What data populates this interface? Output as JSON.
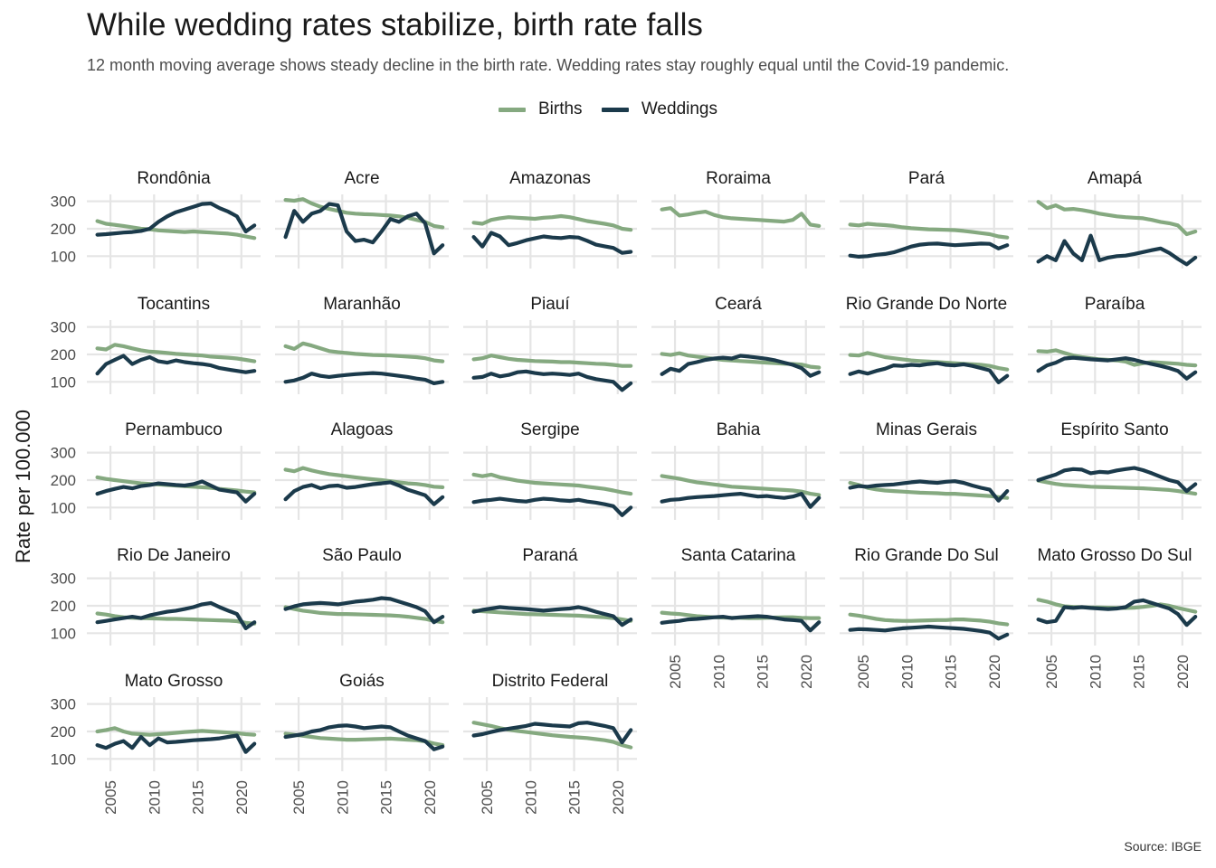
{
  "chart_data": {
    "type": "line",
    "title": "While wedding rates stabilize, birth rate falls",
    "subtitle": "12 month moving average shows steady decline in the birth rate. Wedding rates stay roughly equal until the Covid-19 pandemic.",
    "caption": "Source: IBGE",
    "ylabel": "Rate per 100.000",
    "xlabel": "",
    "x_ticks": [
      2005,
      2010,
      2015,
      2020
    ],
    "y_ticks": [
      100,
      200,
      300
    ],
    "xlim": [
      2002.3,
      2022.2
    ],
    "ylim": [
      55,
      325
    ],
    "grid": true,
    "legend_position": "top",
    "x": [
      2003.5,
      2004.5,
      2005.5,
      2006.5,
      2007.5,
      2008.5,
      2009.5,
      2010.5,
      2011.5,
      2012.5,
      2013.5,
      2014.5,
      2015.5,
      2016.5,
      2017.5,
      2018.5,
      2019.5,
      2020.5,
      2021.5
    ],
    "series_names": [
      "Births",
      "Weddings"
    ],
    "series_colors": [
      "#85a980",
      "#1b3a4b"
    ],
    "panels": [
      {
        "name": "Rondônia",
        "births": [
          228,
          218,
          214,
          210,
          205,
          200,
          198,
          194,
          192,
          190,
          188,
          190,
          188,
          186,
          184,
          182,
          178,
          172,
          166
        ],
        "weddings": [
          178,
          180,
          183,
          186,
          188,
          192,
          200,
          225,
          245,
          260,
          270,
          280,
          290,
          292,
          275,
          262,
          245,
          190,
          212
        ]
      },
      {
        "name": "Acre",
        "births": [
          305,
          302,
          308,
          292,
          280,
          272,
          265,
          258,
          255,
          253,
          252,
          250,
          248,
          245,
          240,
          232,
          225,
          210,
          205
        ],
        "weddings": [
          170,
          265,
          225,
          255,
          265,
          290,
          285,
          190,
          155,
          160,
          150,
          190,
          235,
          225,
          245,
          255,
          220,
          110,
          140
        ]
      },
      {
        "name": "Amazonas",
        "births": [
          222,
          218,
          232,
          238,
          242,
          240,
          238,
          236,
          240,
          242,
          246,
          242,
          235,
          228,
          223,
          218,
          212,
          200,
          196
        ],
        "weddings": [
          170,
          135,
          185,
          172,
          140,
          148,
          158,
          165,
          172,
          168,
          166,
          170,
          168,
          156,
          142,
          136,
          130,
          112,
          116
        ]
      },
      {
        "name": "Roraima",
        "births": [
          270,
          275,
          248,
          252,
          258,
          262,
          250,
          242,
          238,
          236,
          234,
          232,
          230,
          228,
          226,
          232,
          255,
          215,
          210
        ]
      },
      {
        "name": "Pará",
        "births": [
          215,
          212,
          218,
          215,
          213,
          210,
          205,
          202,
          200,
          198,
          197,
          196,
          195,
          192,
          188,
          184,
          180,
          172,
          168
        ],
        "weddings": [
          102,
          98,
          100,
          105,
          108,
          114,
          124,
          135,
          142,
          145,
          146,
          143,
          140,
          142,
          144,
          146,
          145,
          128,
          140
        ]
      },
      {
        "name": "Amapá",
        "births": [
          298,
          275,
          285,
          270,
          272,
          268,
          262,
          255,
          250,
          245,
          242,
          240,
          238,
          232,
          225,
          220,
          212,
          180,
          190
        ],
        "weddings": [
          80,
          100,
          85,
          155,
          110,
          85,
          175,
          85,
          95,
          100,
          102,
          108,
          115,
          122,
          128,
          112,
          90,
          70,
          95
        ]
      },
      {
        "name": "Tocantins",
        "births": [
          222,
          218,
          235,
          230,
          222,
          215,
          210,
          208,
          205,
          202,
          200,
          198,
          196,
          192,
          190,
          188,
          185,
          180,
          175
        ],
        "weddings": [
          130,
          165,
          180,
          195,
          165,
          180,
          190,
          175,
          170,
          178,
          172,
          168,
          165,
          160,
          150,
          145,
          140,
          135,
          140
        ]
      },
      {
        "name": "Maranhão",
        "births": [
          230,
          220,
          240,
          232,
          222,
          212,
          208,
          205,
          202,
          200,
          198,
          197,
          196,
          194,
          192,
          190,
          186,
          178,
          175
        ],
        "weddings": [
          100,
          105,
          115,
          130,
          122,
          118,
          122,
          125,
          128,
          130,
          132,
          130,
          126,
          122,
          118,
          112,
          108,
          95,
          100
        ]
      },
      {
        "name": "Piauí",
        "births": [
          182,
          186,
          196,
          190,
          184,
          180,
          178,
          176,
          175,
          174,
          172,
          172,
          170,
          168,
          166,
          165,
          162,
          158,
          158
        ],
        "weddings": [
          115,
          118,
          130,
          120,
          125,
          135,
          138,
          132,
          128,
          130,
          128,
          125,
          130,
          118,
          110,
          105,
          100,
          70,
          95
        ]
      },
      {
        "name": "Ceará",
        "births": [
          202,
          198,
          204,
          196,
          192,
          188,
          184,
          180,
          178,
          176,
          174,
          172,
          170,
          168,
          166,
          165,
          163,
          155,
          152
        ],
        "weddings": [
          128,
          148,
          140,
          165,
          172,
          180,
          185,
          188,
          185,
          195,
          192,
          188,
          184,
          178,
          170,
          162,
          150,
          122,
          135
        ]
      },
      {
        "name": "Rio Grande Do Norte",
        "births": [
          198,
          196,
          205,
          198,
          190,
          186,
          182,
          178,
          176,
          174,
          172,
          170,
          168,
          166,
          164,
          162,
          158,
          150,
          145
        ],
        "weddings": [
          128,
          138,
          130,
          140,
          148,
          160,
          158,
          162,
          160,
          165,
          168,
          162,
          160,
          164,
          158,
          150,
          142,
          98,
          122
        ]
      },
      {
        "name": "Paraíba",
        "births": [
          212,
          210,
          215,
          205,
          196,
          190,
          186,
          182,
          180,
          178,
          174,
          162,
          168,
          172,
          170,
          168,
          166,
          162,
          160
        ],
        "weddings": [
          140,
          160,
          170,
          185,
          188,
          185,
          182,
          180,
          178,
          182,
          186,
          180,
          172,
          165,
          158,
          150,
          140,
          112,
          135
        ]
      },
      {
        "name": "Pernambuco",
        "births": [
          210,
          204,
          200,
          196,
          192,
          188,
          186,
          184,
          182,
          180,
          178,
          176,
          174,
          172,
          168,
          165,
          162,
          158,
          155
        ],
        "weddings": [
          150,
          160,
          168,
          175,
          170,
          178,
          182,
          188,
          185,
          182,
          180,
          185,
          195,
          180,
          165,
          160,
          155,
          122,
          150
        ]
      },
      {
        "name": "Alagoas",
        "births": [
          238,
          232,
          244,
          235,
          228,
          222,
          218,
          214,
          210,
          206,
          203,
          200,
          196,
          192,
          188,
          186,
          182,
          176,
          174
        ],
        "weddings": [
          130,
          160,
          175,
          182,
          170,
          178,
          180,
          172,
          175,
          180,
          185,
          188,
          192,
          180,
          165,
          155,
          145,
          112,
          138
        ]
      },
      {
        "name": "Sergipe",
        "births": [
          220,
          214,
          220,
          210,
          204,
          198,
          194,
          190,
          188,
          186,
          184,
          182,
          180,
          176,
          172,
          168,
          162,
          155,
          150
        ],
        "weddings": [
          120,
          125,
          128,
          132,
          128,
          124,
          122,
          128,
          132,
          130,
          126,
          124,
          128,
          122,
          118,
          112,
          105,
          72,
          100
        ]
      },
      {
        "name": "Bahia",
        "births": [
          215,
          210,
          205,
          198,
          192,
          188,
          184,
          180,
          176,
          174,
          172,
          170,
          168,
          166,
          164,
          162,
          158,
          150,
          146
        ],
        "weddings": [
          122,
          128,
          130,
          135,
          138,
          140,
          142,
          145,
          148,
          150,
          145,
          140,
          142,
          138,
          135,
          140,
          150,
          102,
          135
        ]
      },
      {
        "name": "Minas Gerais",
        "births": [
          190,
          182,
          172,
          166,
          162,
          160,
          158,
          156,
          154,
          153,
          152,
          150,
          150,
          148,
          146,
          144,
          142,
          138,
          135
        ],
        "weddings": [
          172,
          178,
          176,
          180,
          182,
          184,
          188,
          192,
          195,
          192,
          190,
          194,
          196,
          190,
          180,
          172,
          165,
          125,
          160
        ]
      },
      {
        "name": "Espírito Santo",
        "births": [
          198,
          192,
          186,
          182,
          180,
          178,
          176,
          175,
          174,
          173,
          172,
          171,
          170,
          168,
          166,
          164,
          160,
          155,
          150
        ],
        "weddings": [
          200,
          210,
          220,
          235,
          240,
          238,
          225,
          230,
          228,
          235,
          240,
          244,
          236,
          225,
          212,
          200,
          192,
          160,
          185
        ]
      },
      {
        "name": "Rio De Janeiro",
        "births": [
          172,
          168,
          162,
          158,
          156,
          155,
          154,
          153,
          152,
          152,
          151,
          150,
          149,
          148,
          147,
          146,
          144,
          138,
          135
        ],
        "weddings": [
          140,
          145,
          150,
          155,
          160,
          155,
          165,
          172,
          178,
          182,
          188,
          195,
          205,
          210,
          195,
          182,
          170,
          118,
          140
        ]
      },
      {
        "name": "São Paulo",
        "births": [
          195,
          188,
          182,
          178,
          174,
          172,
          170,
          170,
          169,
          168,
          167,
          166,
          165,
          163,
          160,
          156,
          152,
          145,
          140
        ],
        "weddings": [
          188,
          198,
          205,
          208,
          210,
          208,
          205,
          210,
          215,
          218,
          222,
          228,
          225,
          215,
          205,
          195,
          180,
          140,
          160
        ]
      },
      {
        "name": "Paraná",
        "births": [
          182,
          180,
          178,
          176,
          174,
          172,
          170,
          169,
          168,
          167,
          166,
          165,
          164,
          162,
          160,
          158,
          155,
          150,
          145
        ],
        "weddings": [
          178,
          185,
          190,
          195,
          192,
          190,
          188,
          185,
          182,
          185,
          188,
          190,
          195,
          188,
          178,
          170,
          162,
          130,
          150
        ]
      },
      {
        "name": "Santa Catarina",
        "births": [
          175,
          172,
          170,
          166,
          162,
          160,
          158,
          157,
          156,
          156,
          155,
          155,
          156,
          157,
          158,
          158,
          156,
          155,
          155
        ],
        "weddings": [
          138,
          142,
          145,
          150,
          152,
          155,
          158,
          160,
          155,
          158,
          160,
          162,
          160,
          155,
          150,
          148,
          145,
          110,
          140
        ]
      },
      {
        "name": "Rio Grande Do Sul",
        "births": [
          168,
          164,
          158,
          152,
          148,
          146,
          145,
          145,
          146,
          147,
          148,
          148,
          150,
          150,
          148,
          146,
          142,
          136,
          132
        ],
        "weddings": [
          112,
          115,
          114,
          112,
          110,
          114,
          118,
          120,
          122,
          124,
          122,
          120,
          118,
          116,
          112,
          108,
          102,
          80,
          95
        ]
      },
      {
        "name": "Mato Grosso Do Sul",
        "births": [
          222,
          215,
          205,
          198,
          196,
          195,
          194,
          194,
          193,
          192,
          192,
          193,
          196,
          200,
          205,
          200,
          192,
          185,
          178
        ],
        "weddings": [
          150,
          140,
          145,
          195,
          192,
          195,
          192,
          190,
          188,
          190,
          195,
          215,
          220,
          210,
          200,
          190,
          170,
          130,
          160
        ]
      },
      {
        "name": "Mato Grosso",
        "births": [
          200,
          205,
          212,
          200,
          192,
          190,
          188,
          190,
          192,
          195,
          198,
          200,
          202,
          200,
          198,
          196,
          194,
          190,
          188
        ],
        "weddings": [
          150,
          140,
          155,
          165,
          140,
          180,
          150,
          175,
          160,
          162,
          165,
          168,
          170,
          172,
          175,
          180,
          185,
          125,
          155
        ]
      },
      {
        "name": "Goiás",
        "births": [
          192,
          188,
          184,
          180,
          176,
          174,
          172,
          170,
          170,
          171,
          172,
          173,
          174,
          172,
          170,
          168,
          164,
          156,
          150
        ],
        "weddings": [
          180,
          185,
          190,
          200,
          205,
          215,
          220,
          222,
          218,
          212,
          215,
          218,
          215,
          200,
          185,
          175,
          165,
          135,
          145
        ]
      },
      {
        "name": "Distrito Federal",
        "births": [
          232,
          226,
          220,
          212,
          206,
          202,
          198,
          194,
          190,
          186,
          183,
          180,
          178,
          176,
          172,
          168,
          162,
          150,
          142
        ],
        "weddings": [
          185,
          190,
          198,
          205,
          210,
          215,
          220,
          228,
          225,
          222,
          220,
          218,
          230,
          232,
          226,
          220,
          212,
          160,
          205
        ]
      }
    ]
  }
}
